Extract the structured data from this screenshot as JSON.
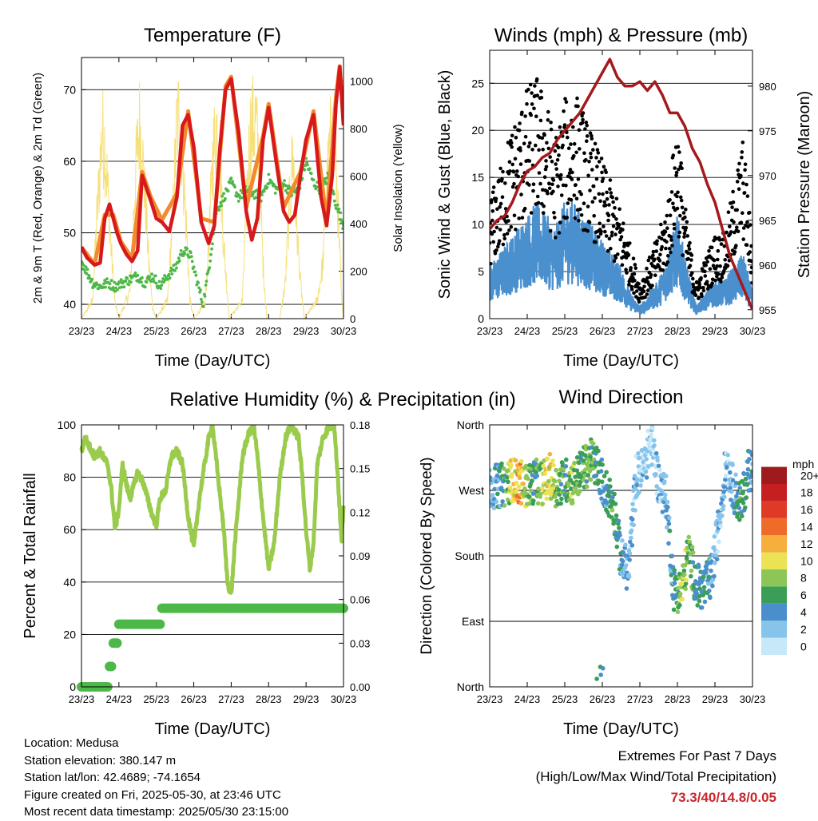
{
  "footer": {
    "location": "Location: Medusa",
    "elevation": "Station elevation: 380.147 m",
    "latlon": "Station lat/lon: 42.4689; -74.1654",
    "created": "Figure created on Fri, 2025-05-30, at 23:46 UTC",
    "recent": "Most recent data timestamp: 2025/05/30 23:15:00"
  },
  "extremes": {
    "title": "Extremes For Past 7 Days",
    "subtitle": "(High/Low/Max Wind/Total Precipitation)",
    "values": "73.3/40/14.8/0.05"
  },
  "colors": {
    "temp_2m": "#d7191c",
    "temp_9m": "#f28a2e",
    "dewpoint": "#4db848",
    "solar": "#f6e07a",
    "wind": "#4a90cf",
    "gust": "#000000",
    "pressure": "#a3191d",
    "rh": "#9acb4c",
    "precip": "#4db848"
  },
  "wind_speed_legend": {
    "title": "mph",
    "labels": [
      "0",
      "2",
      "4",
      "6",
      "8",
      "10",
      "12",
      "14",
      "16",
      "18",
      "20+"
    ],
    "colors": [
      "#c6e8f8",
      "#86c4ec",
      "#4a8fcc",
      "#3a9e56",
      "#8cc657",
      "#ece354",
      "#f6ae3c",
      "#ef6b2a",
      "#df3a26",
      "#c51f22",
      "#9e1a1c"
    ]
  },
  "chart_data": [
    {
      "type": "line",
      "title": "Temperature (F)",
      "xlabel": "Time (Day/UTC)",
      "ylabel": "2m & 9m T (Red, Orange) & 2m Td (Green)",
      "y2label": "Solar Insolation (Yellow)",
      "x_ticks": [
        "23/23",
        "24/23",
        "25/23",
        "26/23",
        "27/23",
        "28/23",
        "29/23",
        "30/23"
      ],
      "xlim": [
        0,
        7
      ],
      "ylim": [
        38,
        74.5
      ],
      "y_ticks": [
        40,
        50,
        60,
        70
      ],
      "y2lim": [
        0,
        1100
      ],
      "y2_ticks": [
        0,
        200,
        400,
        600,
        800,
        1000
      ],
      "grid": true,
      "series": [
        {
          "x": [
            0,
            0.15,
            0.35,
            0.5,
            0.62,
            0.75,
            0.85,
            0.95,
            1.05,
            1.2,
            1.35,
            1.5,
            1.62,
            1.75,
            1.85,
            2.0,
            2.15,
            2.35,
            2.55,
            2.7,
            2.85,
            3.0,
            3.2,
            3.4,
            3.55,
            3.7,
            3.85,
            4.0,
            4.2,
            4.4,
            4.55,
            4.7,
            4.85,
            5.0,
            5.2,
            5.4,
            5.55,
            5.7,
            5.85,
            6.0,
            6.2,
            6.4,
            6.55,
            6.7,
            6.8,
            6.9,
            7.0
          ],
          "y": [
            48,
            46.5,
            45.5,
            45.8,
            52,
            54,
            52,
            50,
            48.5,
            47,
            46,
            47.5,
            58,
            56,
            54.5,
            52,
            51.5,
            50.2,
            55,
            65,
            66.5,
            62,
            51.5,
            48.5,
            51,
            62,
            70,
            71.5,
            64,
            53,
            49,
            52,
            63,
            67.5,
            60,
            53,
            51.5,
            52.5,
            58,
            63,
            66.5,
            55,
            51,
            58,
            68,
            73.2,
            65
          ]
        },
        {
          "x": [
            0,
            0.35,
            0.62,
            0.85,
            1.05,
            1.35,
            1.62,
            1.85,
            2.15,
            2.55,
            2.85,
            3.2,
            3.55,
            3.85,
            4.0,
            4.4,
            4.85,
            5.0,
            5.4,
            5.85,
            6.2,
            6.55,
            6.8,
            6.9,
            7.0
          ],
          "y": [
            48,
            45.6,
            52.5,
            52.5,
            48.8,
            46.4,
            58.5,
            55,
            51.8,
            55.5,
            67,
            52,
            51.5,
            70.5,
            71.8,
            53.5,
            63.5,
            68,
            53.5,
            58.5,
            67,
            51.5,
            69,
            73.3,
            65.5
          ]
        },
        {
          "x": [
            0,
            0.1,
            0.3,
            0.5,
            0.7,
            0.9,
            1.1,
            1.3,
            1.5,
            1.7,
            1.9,
            2.1,
            2.3,
            2.5,
            2.7,
            2.9,
            3.1,
            3.25,
            3.4,
            3.6,
            3.8,
            4.0,
            4.2,
            4.4,
            4.6,
            4.8,
            5.0,
            5.2,
            5.4,
            5.6,
            5.8,
            6.0,
            6.2,
            6.4,
            6.6,
            6.8,
            7.0
          ],
          "y": [
            46,
            45,
            43,
            42.5,
            43,
            42.5,
            43,
            43.5,
            44,
            43,
            44,
            42.5,
            44,
            45,
            47.5,
            47,
            43,
            40,
            45,
            53,
            55,
            57,
            55,
            56,
            55.5,
            55,
            57.5,
            56,
            57,
            55.5,
            56,
            60,
            57,
            56,
            58,
            54,
            51
          ]
        },
        {
          "name": "Solar Insolation",
          "x": [
            0,
            0.3,
            0.4,
            0.5,
            0.55,
            0.62,
            0.7,
            0.8,
            0.9,
            1.0,
            1.3,
            1.45,
            1.55,
            1.62,
            1.72,
            1.8,
            1.9,
            2.0,
            2.3,
            2.45,
            2.55,
            2.65,
            2.72,
            2.8,
            2.9,
            3.0,
            3.3,
            3.4,
            3.5,
            3.6,
            3.7,
            3.8,
            3.95,
            4.3,
            4.4,
            4.5,
            4.65,
            4.75,
            4.85,
            4.95,
            5.3,
            5.45,
            5.55,
            5.65,
            5.75,
            5.85,
            5.95,
            6.3,
            6.45,
            6.55,
            6.65,
            6.75,
            6.85,
            6.95,
            7.0
          ],
          "y": [
            0,
            100,
            500,
            850,
            1000,
            950,
            700,
            350,
            80,
            0,
            150,
            800,
            1050,
            900,
            600,
            300,
            60,
            0,
            100,
            600,
            1070,
            1100,
            800,
            500,
            100,
            0,
            80,
            400,
            850,
            1050,
            900,
            400,
            0,
            100,
            600,
            1000,
            1080,
            800,
            300,
            0,
            0,
            200,
            600,
            900,
            500,
            200,
            0,
            100,
            300,
            700,
            950,
            1000,
            600,
            100,
            0
          ]
        }
      ]
    },
    {
      "type": "scatter",
      "title": "Winds (mph) & Pressure (mb)",
      "xlabel": "Time (Day/UTC)",
      "ylabel": "Sonic Wind & Gust (Blue, Black)",
      "y2label": "Station Pressure (Maroon)",
      "x_ticks": [
        "23/23",
        "24/23",
        "25/23",
        "26/23",
        "27/23",
        "28/23",
        "29/23",
        "30/23"
      ],
      "xlim": [
        0,
        7
      ],
      "ylim": [
        0,
        28.5
      ],
      "y_ticks": [
        0,
        5,
        10,
        15,
        20,
        25
      ],
      "y2lim": [
        954,
        984
      ],
      "y2_ticks": [
        955,
        960,
        965,
        970,
        975,
        980
      ],
      "grid": true,
      "series": [
        {
          "name": "Wind",
          "x": [
            0,
            0.25,
            0.5,
            0.75,
            1.0,
            1.25,
            1.5,
            1.75,
            2.0,
            2.25,
            2.5,
            2.75,
            3.0,
            3.25,
            3.5,
            3.75,
            4.0,
            4.25,
            4.5,
            4.75,
            5.0,
            5.25,
            5.5,
            5.75,
            6.0,
            6.25,
            6.5,
            6.75,
            7.0
          ],
          "y": [
            4,
            5,
            6,
            7,
            8,
            9,
            8,
            7,
            9,
            9,
            8,
            7,
            6,
            5,
            4,
            2,
            1,
            2,
            3,
            5,
            8,
            4,
            1,
            2,
            3,
            3,
            4,
            5,
            2
          ]
        },
        {
          "name": "Gust",
          "x": [
            0,
            0.25,
            0.5,
            0.75,
            1.0,
            1.25,
            1.5,
            1.75,
            2.0,
            2.25,
            2.5,
            2.75,
            3.0,
            3.25,
            3.5,
            3.75,
            4.0,
            4.25,
            4.5,
            4.75,
            5.0,
            5.25,
            5.5,
            5.75,
            6.0,
            6.25,
            6.5,
            6.75,
            7.0
          ],
          "y": [
            10,
            12,
            15,
            17,
            19,
            20,
            18,
            15,
            18,
            19,
            17,
            15,
            13,
            11,
            9,
            6,
            3,
            5,
            7,
            10,
            17,
            8,
            3,
            5,
            7,
            7,
            11,
            15,
            6
          ]
        },
        {
          "name": "Pressure",
          "x": [
            0,
            0.2,
            0.4,
            0.6,
            0.8,
            1.0,
            1.2,
            1.4,
            1.6,
            1.8,
            2.0,
            2.2,
            2.4,
            2.6,
            2.8,
            3.0,
            3.2,
            3.4,
            3.6,
            3.8,
            4.0,
            4.2,
            4.4,
            4.6,
            4.8,
            5.0,
            5.2,
            5.4,
            5.6,
            5.8,
            6.0,
            6.2,
            6.4,
            6.6,
            6.8,
            7.0
          ],
          "y": [
            964,
            965,
            965.5,
            967,
            969,
            970.5,
            971,
            972,
            972.5,
            974,
            975,
            976,
            977,
            978.5,
            980,
            981.5,
            983,
            981,
            980,
            980,
            980.5,
            979.5,
            980.5,
            979,
            977,
            977,
            975.5,
            973,
            971.5,
            969,
            967,
            964,
            961,
            959,
            957,
            955
          ]
        }
      ]
    },
    {
      "type": "line",
      "title": "Relative Humidity (%) & Precipitation (in)",
      "xlabel": "Time (Day/UTC)",
      "ylabel": "Percent & Total Rainfall",
      "x_ticks": [
        "23/23",
        "24/23",
        "25/23",
        "26/23",
        "27/23",
        "28/23",
        "29/23",
        "30/23"
      ],
      "xlim": [
        0,
        7
      ],
      "ylim": [
        0,
        100
      ],
      "y_ticks": [
        0,
        20,
        40,
        60,
        80,
        100
      ],
      "y2lim": [
        0,
        0.18
      ],
      "y2_ticks": [
        "0.00",
        "0.03",
        "0.06",
        "0.09",
        "0.12",
        "0.15",
        "0.18"
      ],
      "grid": true,
      "series": [
        {
          "name": "Relative Humidity",
          "x": [
            0,
            0.1,
            0.2,
            0.35,
            0.5,
            0.6,
            0.7,
            0.8,
            0.9,
            1.0,
            1.1,
            1.2,
            1.3,
            1.5,
            1.65,
            1.8,
            1.9,
            2.0,
            2.1,
            2.25,
            2.4,
            2.55,
            2.7,
            2.85,
            3.0,
            3.15,
            3.3,
            3.4,
            3.5,
            3.65,
            3.8,
            3.9,
            4.0,
            4.1,
            4.3,
            4.45,
            4.6,
            4.7,
            4.85,
            5.0,
            5.15,
            5.3,
            5.45,
            5.6,
            5.8,
            5.9,
            6.0,
            6.1,
            6.2,
            6.3,
            6.45,
            6.6,
            6.75,
            6.85,
            6.95,
            7.0
          ],
          "y": [
            90,
            95,
            92,
            88,
            90,
            87,
            85,
            75,
            60,
            68,
            85,
            77,
            72,
            82,
            78,
            70,
            65,
            62,
            72,
            75,
            88,
            90,
            85,
            65,
            53,
            72,
            86,
            95,
            100,
            80,
            60,
            40,
            35,
            55,
            88,
            96,
            100,
            88,
            65,
            45,
            55,
            80,
            95,
            100,
            95,
            80,
            60,
            45,
            55,
            85,
            95,
            99,
            100,
            80,
            55,
            70
          ]
        },
        {
          "name": "Precipitation",
          "x": [
            0,
            0.7,
            0.72,
            0.82,
            0.85,
            0.95,
            0.97,
            2.1,
            2.12,
            7.0
          ],
          "y": [
            0,
            0,
            0.014,
            0.014,
            0.03,
            0.03,
            0.043,
            0.043,
            0.054,
            0.054
          ]
        }
      ]
    },
    {
      "type": "scatter",
      "title": "Wind Direction",
      "xlabel": "Time (Day/UTC)",
      "ylabel": "Direction (Colored By Speed)",
      "x_ticks": [
        "23/23",
        "24/23",
        "25/23",
        "26/23",
        "27/23",
        "28/23",
        "29/23",
        "30/23"
      ],
      "xlim": [
        0,
        7
      ],
      "y_ticks": [
        "North",
        "East",
        "South",
        "West",
        "North"
      ],
      "ylim": [
        0,
        360
      ],
      "grid": true,
      "series": [
        {
          "name": "Direction",
          "x": [
            0.1,
            0.4,
            0.6,
            0.8,
            1.0,
            1.2,
            1.4,
            1.6,
            1.8,
            2.0,
            2.2,
            2.5,
            2.7,
            2.9,
            3.1,
            3.3,
            3.5,
            3.7,
            3.9,
            4.1,
            4.3,
            4.5,
            4.7,
            4.9,
            5.1,
            5.3,
            5.5,
            5.7,
            5.9,
            6.1,
            6.3,
            6.5,
            6.7,
            6.9
          ],
          "y": [
            275,
            278,
            285,
            282,
            275,
            283,
            280,
            290,
            275,
            285,
            280,
            300,
            310,
            300,
            270,
            250,
            175,
            160,
            290,
            300,
            340,
            280,
            260,
            135,
            130,
            185,
            140,
            135,
            150,
            220,
            310,
            270,
            250,
            300
          ],
          "speed": [
            3,
            6,
            10,
            12,
            8,
            5,
            9,
            11,
            7,
            6,
            8,
            6,
            7,
            5,
            4,
            6,
            4,
            3,
            1,
            2,
            1,
            2,
            3,
            4,
            9,
            7,
            5,
            5,
            4,
            2,
            2,
            3,
            6,
            4
          ]
        }
      ]
    }
  ]
}
